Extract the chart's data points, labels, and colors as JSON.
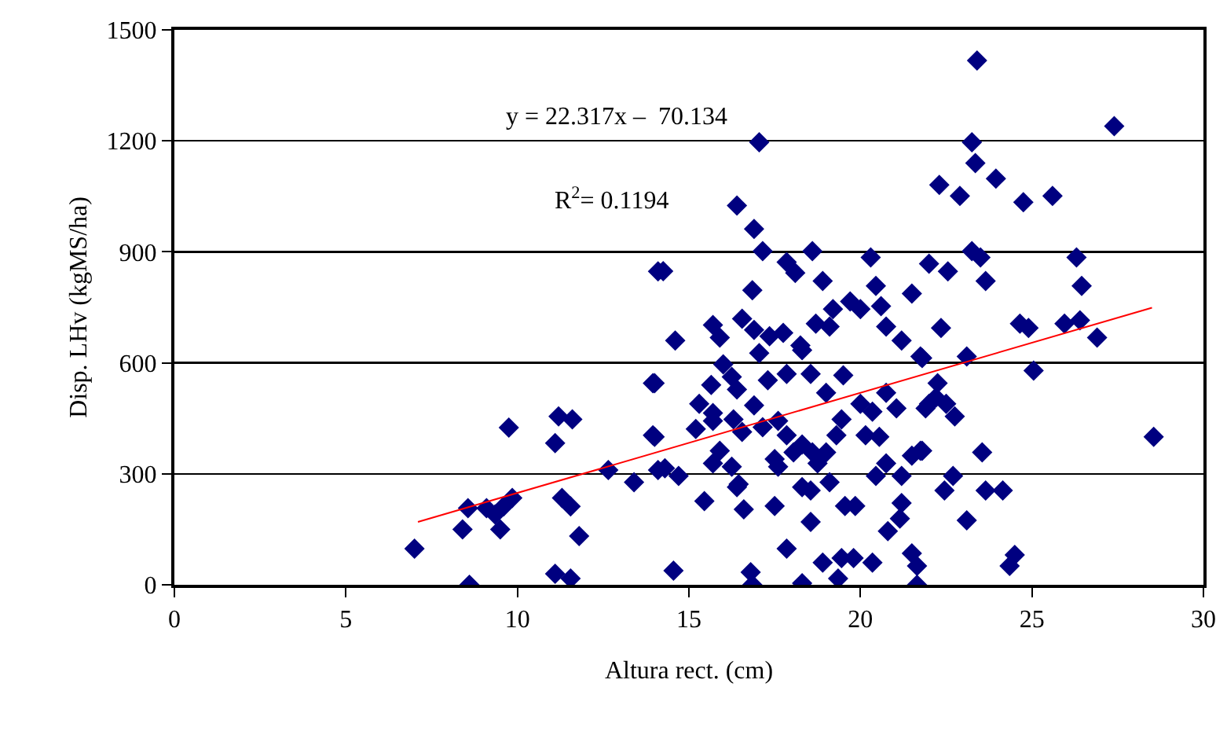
{
  "chart_data": {
    "type": "scatter",
    "xlabel": "Altura rect. (cm)",
    "ylabel": "Disp. LHv (kgMS/ha)",
    "xlim": [
      0,
      30
    ],
    "xticks": [
      0,
      5,
      10,
      15,
      20,
      25,
      30
    ],
    "ylim": [
      0,
      1500
    ],
    "yticks": [
      0,
      300,
      600,
      900,
      1200,
      1500
    ],
    "grid": "y",
    "marker": "diamond",
    "annotations": [
      "y = 22.317x –  70.134",
      "R$^{2}$= 0.1194"
    ],
    "series": [
      {
        "color": "#000080",
        "x": [
          7.0,
          8.56,
          8.4,
          8.6,
          9.1,
          9.35,
          9.5,
          9.6,
          9.85,
          9.75,
          11.2,
          11.6,
          11.1,
          11.3,
          11.55,
          11.8,
          11.1,
          11.55,
          12.65,
          13.4,
          14.0,
          14.0,
          14.1,
          14.1,
          17.05,
          16.4,
          16.9,
          17.15,
          14.25,
          16.85,
          17.85,
          18.1,
          18.6,
          18.9,
          20.3,
          20.45,
          22.0,
          22.3,
          14.6,
          15.7,
          15.9,
          16.55,
          16.9,
          17.35,
          17.75,
          18.25,
          18.7,
          19.1,
          19.2,
          19.7,
          20.0,
          20.6,
          20.75,
          21.2,
          21.5,
          21.75,
          17.05,
          13.95,
          16.0,
          16.25,
          15.65,
          15.3,
          15.7,
          16.4,
          16.9,
          17.3,
          17.85,
          18.3,
          18.55,
          19.0,
          19.5,
          20.0,
          20.35,
          20.75,
          21.05,
          22.0,
          13.95,
          15.2,
          15.7,
          16.3,
          16.55,
          17.15,
          17.6,
          17.85,
          18.3,
          18.6,
          19.3,
          19.45,
          20.15,
          20.55,
          15.9,
          15.7,
          16.25,
          16.45,
          17.5,
          18.05,
          18.75,
          19.0,
          19.1,
          18.3,
          18.55,
          17.6,
          20.75,
          20.45,
          21.2,
          21.5,
          21.75,
          14.3,
          14.7,
          15.45,
          16.4,
          16.6,
          17.5,
          19.55,
          19.85,
          21.2,
          21.15,
          20.8,
          18.55,
          17.85,
          14.55,
          16.8,
          16.85,
          18.3,
          18.9,
          19.45,
          19.8,
          19.35,
          20.35,
          21.5,
          21.65,
          23.4,
          27.4,
          23.25,
          23.35,
          23.95,
          22.9,
          24.75,
          25.6,
          23.25,
          23.5,
          22.55,
          23.65,
          26.3,
          26.45,
          22.35,
          24.65,
          24.9,
          25.95,
          26.4,
          26.9,
          21.8,
          23.1,
          25.05,
          22.25,
          21.9,
          22.5,
          22.75,
          22.2,
          21.8,
          23.55,
          22.7,
          22.45,
          23.65,
          24.15,
          28.55,
          23.1,
          24.5,
          24.35,
          21.65
        ],
        "values": [
          98,
          207,
          150,
          0,
          207,
          190,
          150,
          212,
          235,
          425,
          455,
          447,
          383,
          235,
          212,
          132,
          30,
          17,
          310,
          277,
          545,
          400,
          847,
          310,
          1196,
          1025,
          962,
          902,
          848,
          796,
          872,
          843,
          902,
          821,
          885,
          808,
          868,
          1081,
          660,
          702,
          668,
          719,
          689,
          672,
          681,
          647,
          706,
          698,
          745,
          766,
          745,
          753,
          698,
          660,
          787,
          617,
          626,
          545,
          596,
          562,
          540,
          489,
          464,
          528,
          485,
          553,
          570,
          634,
          570,
          519,
          566,
          489,
          468,
          519,
          477,
          489,
          404,
          421,
          443,
          447,
          413,
          426,
          443,
          404,
          379,
          358,
          404,
          447,
          404,
          400,
          362,
          328,
          319,
          272,
          340,
          358,
          328,
          358,
          277,
          264,
          255,
          319,
          328,
          294,
          294,
          349,
          362,
          315,
          294,
          226,
          264,
          204,
          213,
          213,
          213,
          221,
          179,
          145,
          170,
          98,
          38,
          34,
          0,
          4,
          60,
          72,
          72,
          17,
          60,
          85,
          0,
          1417,
          1240,
          1196,
          1140,
          1098,
          1051,
          1034,
          1051,
          902,
          885,
          847,
          821,
          885,
          808,
          694,
          706,
          694,
          706,
          715,
          668,
          613,
          617,
          579,
          545,
          477,
          489,
          455,
          506,
          362,
          358,
          294,
          255,
          255,
          255,
          400,
          174,
          81,
          51,
          51
        ]
      },
      {
        "type": "line",
        "color": "#ff0000",
        "x": [
          7.1,
          28.5
        ],
        "values": [
          170,
          749
        ],
        "marker": "none"
      }
    ]
  }
}
